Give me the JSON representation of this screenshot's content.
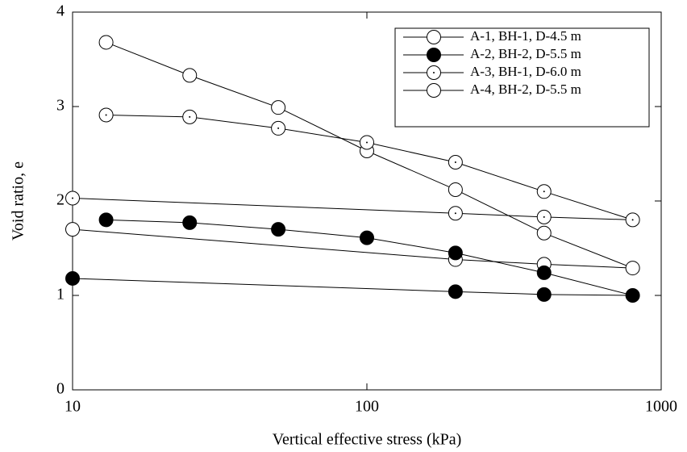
{
  "chart_data": {
    "type": "line",
    "x_label": "Vertical effective stress (kPa)",
    "y_label": "Void ratio, e",
    "x_scale": "log",
    "xlim": [
      10,
      1000
    ],
    "xticks": [
      10,
      100,
      1000
    ],
    "ylim": [
      0,
      4
    ],
    "yticks": [
      0,
      1,
      2,
      3,
      4
    ],
    "legend": "upper right",
    "series": [
      {
        "name": "A-1, BH-1, D-4.5 m",
        "color": "#000000",
        "marker": "open",
        "x": [
          13,
          25,
          50,
          100,
          200,
          400,
          800,
          400,
          200,
          10
        ],
        "values": [
          3.68,
          3.33,
          2.99,
          2.53,
          2.12,
          1.66,
          1.29,
          1.33,
          1.38,
          1.7
        ]
      },
      {
        "name": "A-2, BH-2, D-5.5 m",
        "color": "#000000",
        "marker": "filled",
        "x": [
          13,
          25,
          50,
          100,
          200,
          400,
          800,
          400,
          200,
          10
        ],
        "values": [
          1.8,
          1.77,
          1.7,
          1.61,
          1.45,
          1.24,
          1.0,
          1.01,
          1.04,
          1.18
        ]
      },
      {
        "name": "A-3, BH-1, D-6.0 m",
        "color": "#000000",
        "marker": "dot",
        "x": [
          13,
          25,
          50,
          100,
          200,
          400,
          800,
          400,
          200,
          10
        ],
        "values": [
          2.91,
          2.89,
          2.77,
          2.62,
          2.41,
          2.1,
          1.8,
          1.83,
          1.87,
          2.03
        ]
      },
      {
        "name": "A-4, BH-2, D-5.5 m",
        "color": "#000000",
        "marker": "open",
        "x": [],
        "values": []
      }
    ]
  }
}
